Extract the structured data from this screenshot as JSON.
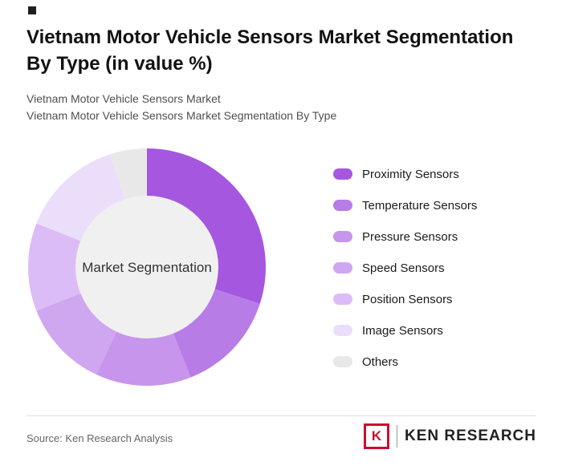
{
  "header": {
    "title_line1": "Vietnam Motor Vehicle Sensors Market Segmentation",
    "title_line2": "By Type (in value %)",
    "subtitle1": "Vietnam Motor Vehicle Sensors Market",
    "subtitle2": "Vietnam Motor Vehicle Sensors Market Segmentation By Type"
  },
  "chart_data": {
    "type": "pie",
    "donut": true,
    "center_label": "Market Segmentation",
    "center_fill": "#f0f0f0",
    "center_text_color": "#333333",
    "categories": [
      "Proximity Sensors",
      "Temperature Sensors",
      "Pressure Sensors",
      "Speed Sensors",
      "Position Sensors",
      "Image Sensors",
      "Others"
    ],
    "values": [
      30,
      14,
      13,
      12,
      12,
      14,
      5
    ],
    "colors": [
      "#a557e0",
      "#b77ce6",
      "#c795ec",
      "#cfa6f0",
      "#dcbcf6",
      "#ebdefb",
      "#e8e8e8"
    ],
    "legend_position": "right",
    "start_angle_deg": -90
  },
  "footer": {
    "source": "Source: Ken Research Analysis",
    "logo_letter": "K",
    "logo_text": "KEN RESEARCH",
    "logo_color": "#c8102e"
  }
}
